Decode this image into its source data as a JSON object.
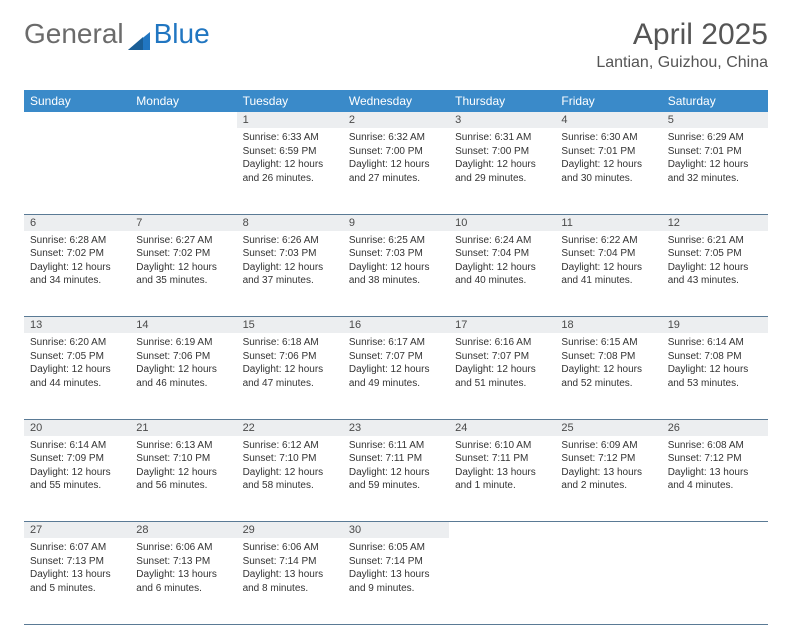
{
  "logo": {
    "part1": "General",
    "part2": "Blue"
  },
  "title": "April 2025",
  "location": "Lantian, Guizhou, China",
  "header_bg": "#3a8ac9",
  "header_text": "#ffffff",
  "daynum_bg": "#eceef0",
  "border_color": "#5a7a95",
  "weekdays": [
    "Sunday",
    "Monday",
    "Tuesday",
    "Wednesday",
    "Thursday",
    "Friday",
    "Saturday"
  ],
  "weeks": [
    [
      null,
      null,
      {
        "n": "1",
        "sr": "Sunrise: 6:33 AM",
        "ss": "Sunset: 6:59 PM",
        "dl": "Daylight: 12 hours and 26 minutes."
      },
      {
        "n": "2",
        "sr": "Sunrise: 6:32 AM",
        "ss": "Sunset: 7:00 PM",
        "dl": "Daylight: 12 hours and 27 minutes."
      },
      {
        "n": "3",
        "sr": "Sunrise: 6:31 AM",
        "ss": "Sunset: 7:00 PM",
        "dl": "Daylight: 12 hours and 29 minutes."
      },
      {
        "n": "4",
        "sr": "Sunrise: 6:30 AM",
        "ss": "Sunset: 7:01 PM",
        "dl": "Daylight: 12 hours and 30 minutes."
      },
      {
        "n": "5",
        "sr": "Sunrise: 6:29 AM",
        "ss": "Sunset: 7:01 PM",
        "dl": "Daylight: 12 hours and 32 minutes."
      }
    ],
    [
      {
        "n": "6",
        "sr": "Sunrise: 6:28 AM",
        "ss": "Sunset: 7:02 PM",
        "dl": "Daylight: 12 hours and 34 minutes."
      },
      {
        "n": "7",
        "sr": "Sunrise: 6:27 AM",
        "ss": "Sunset: 7:02 PM",
        "dl": "Daylight: 12 hours and 35 minutes."
      },
      {
        "n": "8",
        "sr": "Sunrise: 6:26 AM",
        "ss": "Sunset: 7:03 PM",
        "dl": "Daylight: 12 hours and 37 minutes."
      },
      {
        "n": "9",
        "sr": "Sunrise: 6:25 AM",
        "ss": "Sunset: 7:03 PM",
        "dl": "Daylight: 12 hours and 38 minutes."
      },
      {
        "n": "10",
        "sr": "Sunrise: 6:24 AM",
        "ss": "Sunset: 7:04 PM",
        "dl": "Daylight: 12 hours and 40 minutes."
      },
      {
        "n": "11",
        "sr": "Sunrise: 6:22 AM",
        "ss": "Sunset: 7:04 PM",
        "dl": "Daylight: 12 hours and 41 minutes."
      },
      {
        "n": "12",
        "sr": "Sunrise: 6:21 AM",
        "ss": "Sunset: 7:05 PM",
        "dl": "Daylight: 12 hours and 43 minutes."
      }
    ],
    [
      {
        "n": "13",
        "sr": "Sunrise: 6:20 AM",
        "ss": "Sunset: 7:05 PM",
        "dl": "Daylight: 12 hours and 44 minutes."
      },
      {
        "n": "14",
        "sr": "Sunrise: 6:19 AM",
        "ss": "Sunset: 7:06 PM",
        "dl": "Daylight: 12 hours and 46 minutes."
      },
      {
        "n": "15",
        "sr": "Sunrise: 6:18 AM",
        "ss": "Sunset: 7:06 PM",
        "dl": "Daylight: 12 hours and 47 minutes."
      },
      {
        "n": "16",
        "sr": "Sunrise: 6:17 AM",
        "ss": "Sunset: 7:07 PM",
        "dl": "Daylight: 12 hours and 49 minutes."
      },
      {
        "n": "17",
        "sr": "Sunrise: 6:16 AM",
        "ss": "Sunset: 7:07 PM",
        "dl": "Daylight: 12 hours and 51 minutes."
      },
      {
        "n": "18",
        "sr": "Sunrise: 6:15 AM",
        "ss": "Sunset: 7:08 PM",
        "dl": "Daylight: 12 hours and 52 minutes."
      },
      {
        "n": "19",
        "sr": "Sunrise: 6:14 AM",
        "ss": "Sunset: 7:08 PM",
        "dl": "Daylight: 12 hours and 53 minutes."
      }
    ],
    [
      {
        "n": "20",
        "sr": "Sunrise: 6:14 AM",
        "ss": "Sunset: 7:09 PM",
        "dl": "Daylight: 12 hours and 55 minutes."
      },
      {
        "n": "21",
        "sr": "Sunrise: 6:13 AM",
        "ss": "Sunset: 7:10 PM",
        "dl": "Daylight: 12 hours and 56 minutes."
      },
      {
        "n": "22",
        "sr": "Sunrise: 6:12 AM",
        "ss": "Sunset: 7:10 PM",
        "dl": "Daylight: 12 hours and 58 minutes."
      },
      {
        "n": "23",
        "sr": "Sunrise: 6:11 AM",
        "ss": "Sunset: 7:11 PM",
        "dl": "Daylight: 12 hours and 59 minutes."
      },
      {
        "n": "24",
        "sr": "Sunrise: 6:10 AM",
        "ss": "Sunset: 7:11 PM",
        "dl": "Daylight: 13 hours and 1 minute."
      },
      {
        "n": "25",
        "sr": "Sunrise: 6:09 AM",
        "ss": "Sunset: 7:12 PM",
        "dl": "Daylight: 13 hours and 2 minutes."
      },
      {
        "n": "26",
        "sr": "Sunrise: 6:08 AM",
        "ss": "Sunset: 7:12 PM",
        "dl": "Daylight: 13 hours and 4 minutes."
      }
    ],
    [
      {
        "n": "27",
        "sr": "Sunrise: 6:07 AM",
        "ss": "Sunset: 7:13 PM",
        "dl": "Daylight: 13 hours and 5 minutes."
      },
      {
        "n": "28",
        "sr": "Sunrise: 6:06 AM",
        "ss": "Sunset: 7:13 PM",
        "dl": "Daylight: 13 hours and 6 minutes."
      },
      {
        "n": "29",
        "sr": "Sunrise: 6:06 AM",
        "ss": "Sunset: 7:14 PM",
        "dl": "Daylight: 13 hours and 8 minutes."
      },
      {
        "n": "30",
        "sr": "Sunrise: 6:05 AM",
        "ss": "Sunset: 7:14 PM",
        "dl": "Daylight: 13 hours and 9 minutes."
      },
      null,
      null,
      null
    ]
  ]
}
